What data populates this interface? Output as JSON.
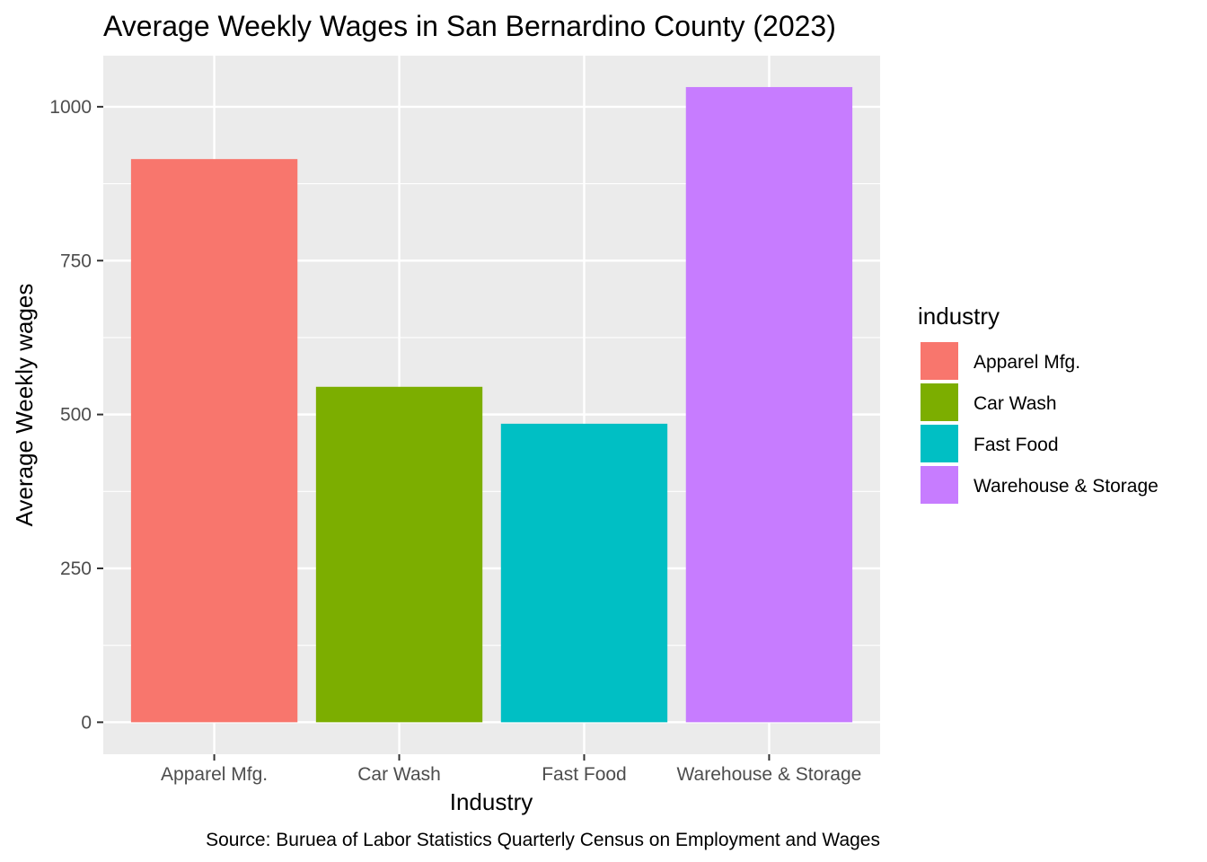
{
  "chart_data": {
    "type": "bar",
    "title": "Average Weekly Wages in San Bernardino County (2023)",
    "xlabel": "Industry",
    "ylabel": "Average Weekly wages",
    "categories": [
      "Apparel Mfg.",
      "Car Wash",
      "Fast Food",
      "Warehouse & Storage"
    ],
    "values": [
      915,
      545,
      485,
      1032
    ],
    "colors": [
      "#F8766D",
      "#7CAE00",
      "#00BFC4",
      "#C77CFF"
    ],
    "ylim": [
      -52,
      1083
    ],
    "yticks": [
      0,
      250,
      500,
      750,
      1000
    ],
    "ytick_labels": [
      "0",
      "250",
      "500",
      "750",
      "1000"
    ],
    "grid": true,
    "panel_background": "#EBEBEB",
    "legend": {
      "title": "industry",
      "placement": "right",
      "entries": [
        "Apparel Mfg.",
        "Car Wash",
        "Fast Food",
        "Warehouse & Storage"
      ]
    },
    "caption": "Source: Buruea of Labor Statistics Quarterly Census on Employment and Wages"
  }
}
